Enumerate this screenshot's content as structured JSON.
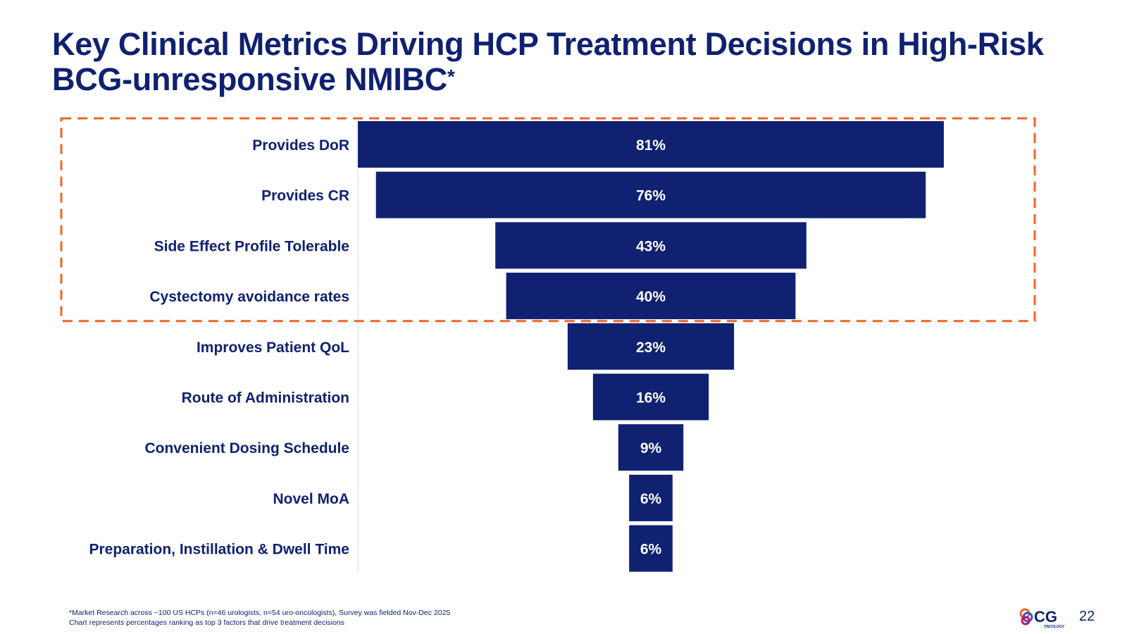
{
  "slide": {
    "title": "Key Clinical Metrics Driving HCP Treatment Decisions in High-Risk BCG-unresponsive NMIBC",
    "title_marker": "*",
    "footnote_line1": "*Market Research across ~100 US HCPs (n=46 urologists, n=54 uro-oncologists), Survey was fielded Nov-Dec 2025",
    "footnote_line2": "Chart represents percentages ranking as top 3 factors that drive treatment decisions",
    "page_number": "22",
    "logo_text": "CG",
    "logo_subtext": "ONCOLOGY"
  },
  "chart_data": {
    "type": "bar",
    "orientation": "horizontal-funnel",
    "title": "",
    "xlabel": "",
    "ylabel": "",
    "categories": [
      "Provides DoR",
      "Provides CR",
      "Side Effect Profile Tolerable",
      "Cystectomy avoidance rates",
      "Improves Patient QoL",
      "Route of Administration",
      "Convenient Dosing Schedule",
      "Novel MoA",
      "Preparation, Instillation & Dwell Time"
    ],
    "values": [
      81,
      76,
      43,
      40,
      23,
      16,
      9,
      6,
      6
    ],
    "value_labels": [
      "81%",
      "76%",
      "43%",
      "40%",
      "23%",
      "16%",
      "9%",
      "6%",
      "6%"
    ],
    "value_unit": "%",
    "highlighted_categories": 4,
    "bar_color": "#0f2170",
    "label_color": "#0f2170",
    "highlight_border_color": "#f26522"
  }
}
